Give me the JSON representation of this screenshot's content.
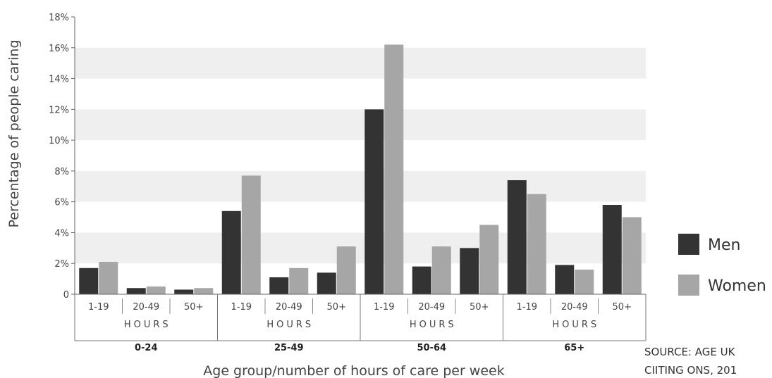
{
  "chart_data": {
    "type": "bar",
    "xlabel": "Age group/number of hours of care per week",
    "ylabel": "Percentage of people caring",
    "ylim": [
      0,
      18
    ],
    "yticks": [
      "0",
      "2%",
      "4%",
      "6%",
      "8%",
      "10%",
      "12%",
      "14%",
      "16%",
      "18%"
    ],
    "grid": "alternating horizontal bands",
    "hours_label": "HOURS",
    "groups": [
      "0-24",
      "25-49",
      "50-64",
      "65+"
    ],
    "subcategories": [
      "1-19",
      "20-49",
      "50+"
    ],
    "categories": [
      "0-24 1-19",
      "0-24 20-49",
      "0-24 50+",
      "25-49 1-19",
      "25-49 20-49",
      "25-49 50+",
      "50-64 1-19",
      "50-64 20-49",
      "50-64 50+",
      "65+ 1-19",
      "65+ 20-49",
      "65+ 50+"
    ],
    "series": [
      {
        "name": "Men",
        "color": "#333333",
        "values": [
          1.7,
          0.4,
          0.3,
          5.4,
          1.1,
          1.4,
          12.0,
          1.8,
          3.0,
          7.4,
          1.9,
          5.8
        ]
      },
      {
        "name": "Women",
        "color": "#a6a6a6",
        "values": [
          2.1,
          0.5,
          0.4,
          7.7,
          1.7,
          3.1,
          16.2,
          3.1,
          4.5,
          6.5,
          1.6,
          5.0
        ]
      }
    ],
    "legend_position": "right"
  },
  "source": {
    "line1": "SOURCE: AGE UK",
    "line2": "CIITING ONS, 201"
  }
}
